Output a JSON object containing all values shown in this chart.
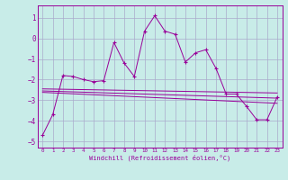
{
  "xlabel": "Windchill (Refroidissement éolien,°C)",
  "bg_color": "#c8ece8",
  "grid_color": "#aaaacc",
  "line_color": "#990099",
  "xlim": [
    -0.5,
    23.5
  ],
  "ylim": [
    -5.3,
    1.6
  ],
  "xticks": [
    0,
    1,
    2,
    3,
    4,
    5,
    6,
    7,
    8,
    9,
    10,
    11,
    12,
    13,
    14,
    15,
    16,
    17,
    18,
    19,
    20,
    21,
    22,
    23
  ],
  "yticks": [
    -5,
    -4,
    -3,
    -2,
    -1,
    0,
    1
  ],
  "main_x": [
    0,
    1,
    2,
    3,
    4,
    5,
    6,
    7,
    8,
    9,
    10,
    11,
    12,
    13,
    14,
    15,
    16,
    17,
    18,
    19,
    20,
    21,
    22,
    23
  ],
  "main_y": [
    -4.7,
    -3.7,
    -1.8,
    -1.85,
    -2.0,
    -2.1,
    -2.05,
    -0.2,
    -1.2,
    -1.85,
    0.35,
    1.1,
    0.35,
    0.2,
    -1.15,
    -0.7,
    -0.55,
    -1.45,
    -2.7,
    -2.7,
    -3.3,
    -3.95,
    -3.95,
    -2.85
  ],
  "trend1_x": [
    0,
    23
  ],
  "trend1_y": [
    -2.45,
    -2.65
  ],
  "trend2_x": [
    0,
    23
  ],
  "trend2_y": [
    -2.55,
    -2.9
  ],
  "trend3_x": [
    0,
    23
  ],
  "trend3_y": [
    -2.62,
    -3.15
  ]
}
